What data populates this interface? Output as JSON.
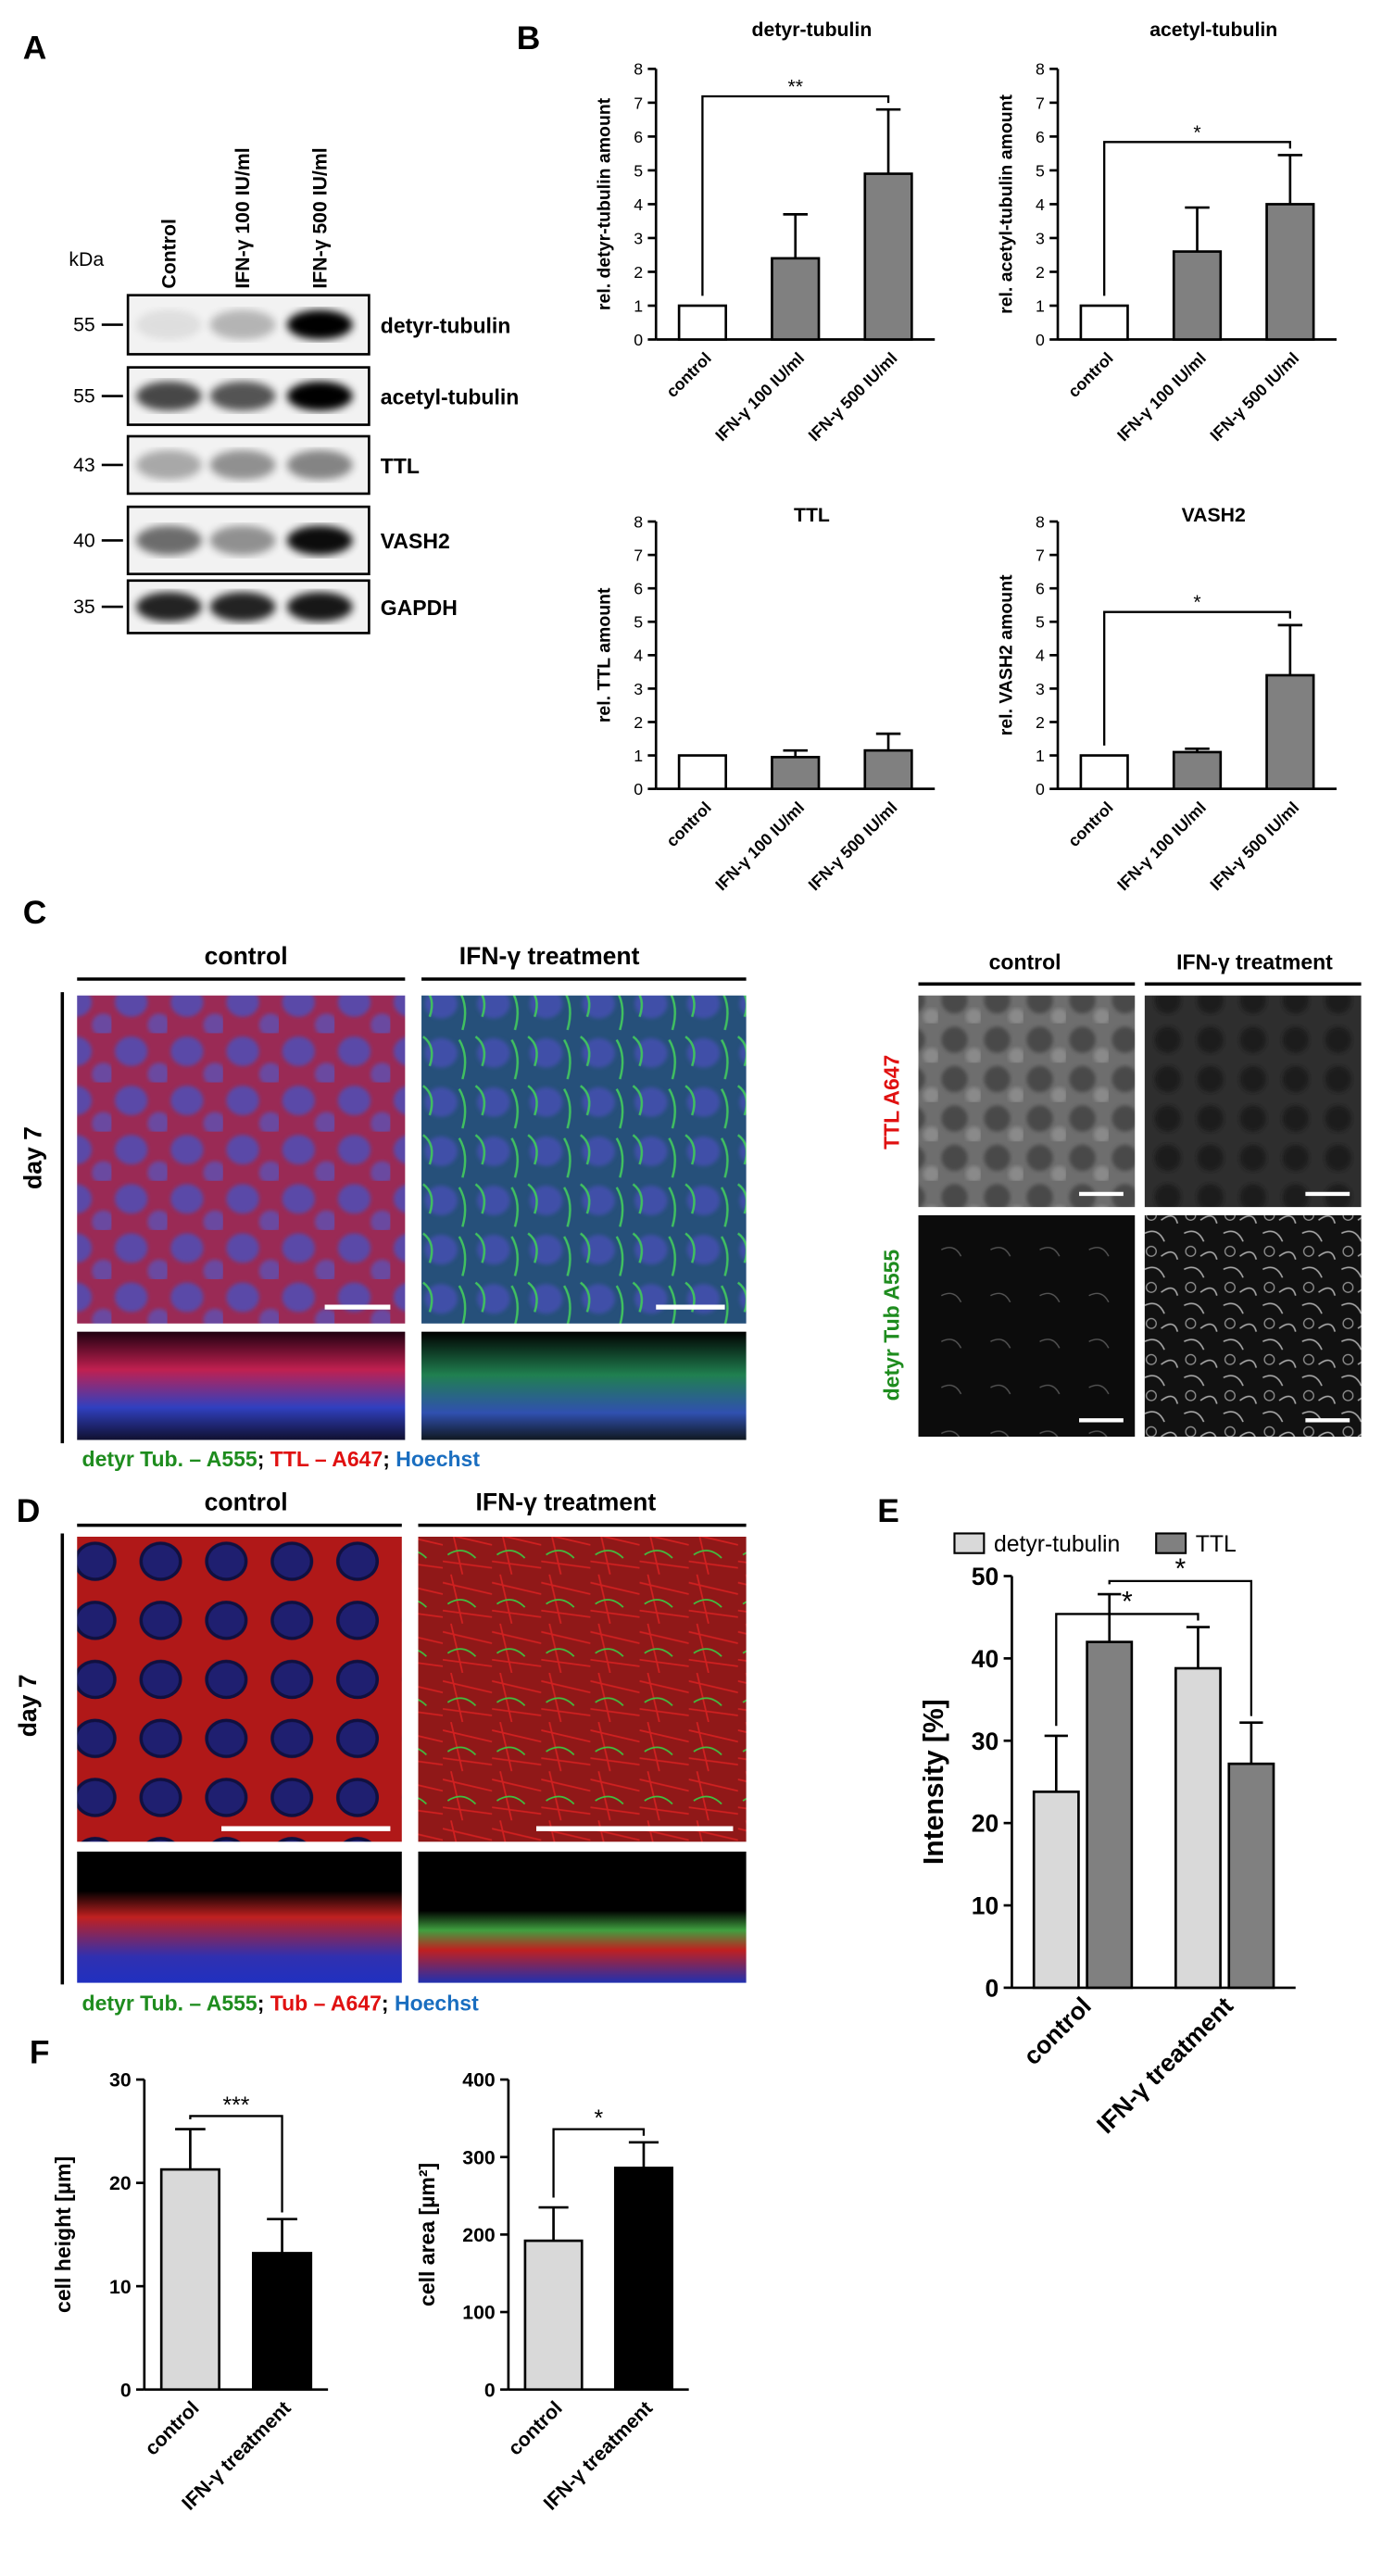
{
  "panel_labels": {
    "a": "A",
    "b": "B",
    "c": "C",
    "d": "D",
    "e": "E",
    "f": "F"
  },
  "blot": {
    "unit": "kDa",
    "lanes": [
      "Control",
      "IFN-γ 100 IU/ml",
      "IFN-γ 500 IU/ml"
    ],
    "rows": [
      {
        "mw": 55,
        "label": "detyr-tubulin"
      },
      {
        "mw": 55,
        "label": "acetyl-tubulin"
      },
      {
        "mw": 43,
        "label": "TTL"
      },
      {
        "mw": 40,
        "label": "VASH2"
      },
      {
        "mw": 35,
        "label": "GAPDH"
      }
    ]
  },
  "chart_data": [
    {
      "type": "bar",
      "title": "detyr-tubulin",
      "y_label": "rel. detyr-tubulin amount",
      "categories": [
        "control",
        "IFN-γ 100 IU/ml",
        "IFN-γ 500 IU/ml"
      ],
      "series": [
        {
          "values": [
            1,
            2.4,
            4.9
          ],
          "errors": [
            null,
            1.3,
            1.9
          ],
          "colors": [
            "#ffffff",
            "#808080",
            "#808080"
          ]
        }
      ],
      "ylim": [
        0,
        8
      ],
      "yticks": [
        0,
        1,
        2,
        3,
        4,
        5,
        6,
        7,
        8
      ],
      "annotations": [
        {
          "text": "**",
          "between": [
            "control",
            "IFN-γ 500 IU/ml"
          ]
        }
      ]
    },
    {
      "type": "bar",
      "title": "acetyl-tubulin",
      "y_label": "rel. acetyl-tubulin amount",
      "categories": [
        "control",
        "IFN-γ 100 IU/ml",
        "IFN-γ 500 IU/ml"
      ],
      "series": [
        {
          "values": [
            1,
            2.6,
            4.0
          ],
          "errors": [
            null,
            1.3,
            1.45
          ],
          "colors": [
            "#ffffff",
            "#808080",
            "#808080"
          ]
        }
      ],
      "ylim": [
        0,
        8
      ],
      "yticks": [
        0,
        1,
        2,
        3,
        4,
        5,
        6,
        7,
        8
      ],
      "annotations": [
        {
          "text": "*",
          "between": [
            "control",
            "IFN-γ 500 IU/ml"
          ]
        }
      ]
    },
    {
      "type": "bar",
      "title": "TTL",
      "y_label": "rel. TTL amount",
      "categories": [
        "control",
        "IFN-γ 100 IU/ml",
        "IFN-γ 500 IU/ml"
      ],
      "series": [
        {
          "values": [
            1,
            0.95,
            1.15
          ],
          "errors": [
            null,
            0.2,
            0.5
          ],
          "colors": [
            "#ffffff",
            "#808080",
            "#808080"
          ]
        }
      ],
      "ylim": [
        0,
        8
      ],
      "yticks": [
        0,
        1,
        2,
        3,
        4,
        5,
        6,
        7,
        8
      ]
    },
    {
      "type": "bar",
      "title": "VASH2",
      "y_label": "rel. VASH2 amount",
      "categories": [
        "control",
        "IFN-γ 100 IU/ml",
        "IFN-γ 500 IU/ml"
      ],
      "series": [
        {
          "values": [
            1,
            1.1,
            3.4
          ],
          "errors": [
            null,
            0.1,
            1.5
          ],
          "colors": [
            "#ffffff",
            "#808080",
            "#808080"
          ]
        }
      ],
      "ylim": [
        0,
        8
      ],
      "yticks": [
        0,
        1,
        2,
        3,
        4,
        5,
        6,
        7,
        8
      ],
      "annotations": [
        {
          "text": "*",
          "between": [
            "control",
            "IFN-γ 500 IU/ml"
          ]
        }
      ]
    },
    {
      "type": "bar",
      "y_label": "Intensity [%]",
      "categories": [
        "control",
        "IFN-γ treatment"
      ],
      "series": [
        {
          "name": "detyr-tubulin",
          "color": "#d9d9d9",
          "values": [
            23.8,
            38.8
          ],
          "errors": [
            6.8,
            5.0
          ]
        },
        {
          "name": "TTL",
          "color": "#808080",
          "values": [
            42.0,
            27.2
          ],
          "errors": [
            5.8,
            5.0
          ]
        }
      ],
      "ylim": [
        0,
        50
      ],
      "yticks": [
        0,
        10,
        20,
        30,
        40,
        50
      ],
      "legend": "top",
      "annotations": [
        {
          "text": "*",
          "series": "detyr-tubulin",
          "between": [
            "control",
            "IFN-γ treatment"
          ]
        },
        {
          "text": "*",
          "series": "TTL",
          "between": [
            "control",
            "IFN-γ treatment"
          ]
        }
      ]
    },
    {
      "type": "bar",
      "y_label": "cell height [µm]",
      "categories": [
        "control",
        "IFN-γ treatment"
      ],
      "series": [
        {
          "values": [
            21.3,
            13.2
          ],
          "errors": [
            3.9,
            3.3
          ],
          "colors": [
            "#d9d9d9",
            "#000000"
          ]
        }
      ],
      "ylim": [
        0,
        30
      ],
      "yticks": [
        0,
        10,
        20,
        30
      ],
      "annotations": [
        {
          "text": "***",
          "between": [
            "control",
            "IFN-γ treatment"
          ]
        }
      ]
    },
    {
      "type": "bar",
      "y_label": "cell area [µm²]",
      "categories": [
        "control",
        "IFN-γ treatment"
      ],
      "series": [
        {
          "values": [
            192,
            286
          ],
          "errors": [
            43,
            33
          ],
          "colors": [
            "#d9d9d9",
            "#000000"
          ]
        }
      ],
      "ylim": [
        0,
        400
      ],
      "yticks": [
        0,
        100,
        200,
        300,
        400
      ],
      "annotations": [
        {
          "text": "*",
          "between": [
            "control",
            "IFN-γ treatment"
          ]
        }
      ]
    }
  ],
  "panel_c": {
    "conditions": [
      "control",
      "IFN-γ treatment"
    ],
    "timepoint": "day 7",
    "legend": [
      "detyr Tub. – A555",
      "; ",
      "TTL – A647",
      "; ",
      "Hoechst"
    ],
    "channels": {
      "conditions": [
        "control",
        "IFN-γ treatment"
      ],
      "rows": [
        "TTL A647",
        "detyr Tub A555"
      ]
    }
  },
  "panel_d": {
    "conditions": [
      "control",
      "IFN-γ treatment"
    ],
    "timepoint": "day 7",
    "legend": [
      "detyr Tub. – A555",
      "; ",
      "Tub – A647",
      "; ",
      "Hoechst"
    ]
  }
}
